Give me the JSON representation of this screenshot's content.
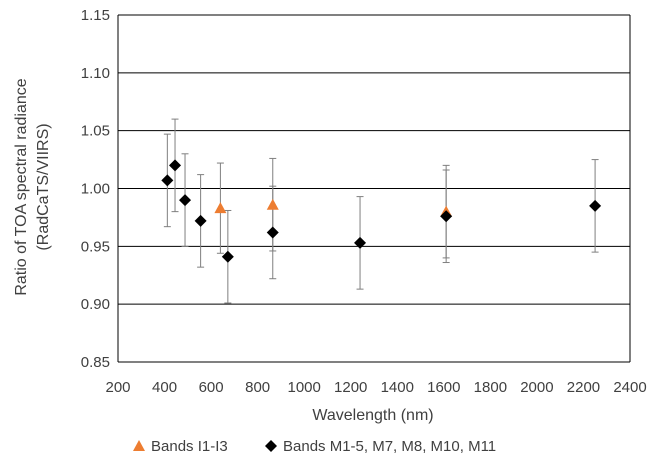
{
  "chart_data": {
    "type": "scatter",
    "title": "",
    "xlabel": "Wavelength (nm)",
    "ylabel_line1": "Ratio of TOA spectral radiance",
    "ylabel_line2": "(RadCaTS/VIIRS)",
    "xlim": [
      200,
      2400
    ],
    "ylim": [
      0.85,
      1.15
    ],
    "xticks": [
      "200",
      "400",
      "600",
      "800",
      "1000",
      "1200",
      "1400",
      "1600",
      "1800",
      "2000",
      "2200",
      "2400"
    ],
    "xtick_values": [
      200,
      400,
      600,
      800,
      1000,
      1200,
      1400,
      1600,
      1800,
      2000,
      2200,
      2400
    ],
    "yticks": [
      "0.85",
      "0.90",
      "0.95",
      "1.00",
      "1.05",
      "1.10",
      "1.15"
    ],
    "ytick_values": [
      0.85,
      0.9,
      0.95,
      1.0,
      1.05,
      1.1,
      1.15
    ],
    "grid": "horizontal",
    "legend_position": "bottom",
    "series": [
      {
        "name": "Bands I1-I3",
        "marker": "triangle",
        "color": "#ED7D31",
        "points": [
          {
            "x": 640,
            "y": 0.983,
            "err": 0.039
          },
          {
            "x": 865,
            "y": 0.986,
            "err": 0.04
          },
          {
            "x": 1610,
            "y": 0.98,
            "err": 0.04
          }
        ]
      },
      {
        "name": "Bands M1-5, M7, M8, M10, M11",
        "marker": "diamond",
        "color": "#000000",
        "points": [
          {
            "x": 412,
            "y": 1.007,
            "err": 0.04
          },
          {
            "x": 445,
            "y": 1.02,
            "err": 0.04
          },
          {
            "x": 488,
            "y": 0.99,
            "err": 0.04
          },
          {
            "x": 555,
            "y": 0.972,
            "err": 0.04
          },
          {
            "x": 672,
            "y": 0.941,
            "err": 0.04
          },
          {
            "x": 865,
            "y": 0.962,
            "err": 0.04
          },
          {
            "x": 1240,
            "y": 0.953,
            "err": 0.04
          },
          {
            "x": 1610,
            "y": 0.976,
            "err": 0.04
          },
          {
            "x": 2250,
            "y": 0.985,
            "err": 0.04
          }
        ]
      }
    ]
  }
}
